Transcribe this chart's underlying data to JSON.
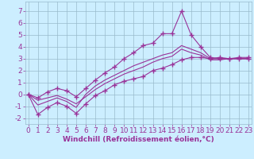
{
  "xlabel": "Windchill (Refroidissement éolien,°C)",
  "background_color": "#cceeff",
  "line_color": "#993399",
  "grid_color": "#99bbcc",
  "x_data": [
    0,
    1,
    2,
    3,
    4,
    5,
    6,
    7,
    8,
    9,
    10,
    11,
    12,
    13,
    14,
    15,
    16,
    17,
    18,
    19,
    20,
    21,
    22,
    23
  ],
  "series": [
    [
      0,
      -1.7,
      -1.1,
      -0.7,
      -1.0,
      -1.6,
      -0.8,
      -0.1,
      0.3,
      0.8,
      1.1,
      1.3,
      1.5,
      2.0,
      2.2,
      2.5,
      2.9,
      3.1,
      3.1,
      3.0,
      3.1,
      3.0,
      3.1,
      3.1
    ],
    [
      0,
      -0.3,
      0.2,
      0.5,
      0.3,
      -0.2,
      0.5,
      1.2,
      1.8,
      2.3,
      3.0,
      3.5,
      4.1,
      4.3,
      5.1,
      5.1,
      7.0,
      5.0,
      4.0,
      3.1,
      3.0,
      3.0,
      3.0,
      3.0
    ],
    [
      0,
      -0.5,
      -0.3,
      -0.1,
      -0.4,
      -0.8,
      -0.2,
      0.4,
      0.9,
      1.3,
      1.7,
      2.0,
      2.3,
      2.7,
      3.0,
      3.2,
      3.8,
      3.5,
      3.3,
      2.9,
      2.9,
      3.0,
      3.0,
      3.0
    ],
    [
      0,
      -0.9,
      -0.6,
      -0.3,
      -0.6,
      -1.1,
      0.0,
      0.7,
      1.2,
      1.6,
      2.0,
      2.4,
      2.7,
      3.0,
      3.3,
      3.5,
      4.1,
      3.8,
      3.5,
      3.0,
      3.0,
      3.0,
      3.0,
      3.0
    ]
  ],
  "series_with_markers": [
    0,
    1
  ],
  "ylim": [
    -2.5,
    7.8
  ],
  "xlim": [
    -0.3,
    23.3
  ],
  "yticks": [
    -2,
    -1,
    0,
    1,
    2,
    3,
    4,
    5,
    6,
    7
  ],
  "xticks": [
    0,
    1,
    2,
    3,
    4,
    5,
    6,
    7,
    8,
    9,
    10,
    11,
    12,
    13,
    14,
    15,
    16,
    17,
    18,
    19,
    20,
    21,
    22,
    23
  ],
  "marker": "+",
  "markersize": 4,
  "linewidth": 0.8,
  "xlabel_fontsize": 6.5,
  "tick_fontsize": 6.5
}
